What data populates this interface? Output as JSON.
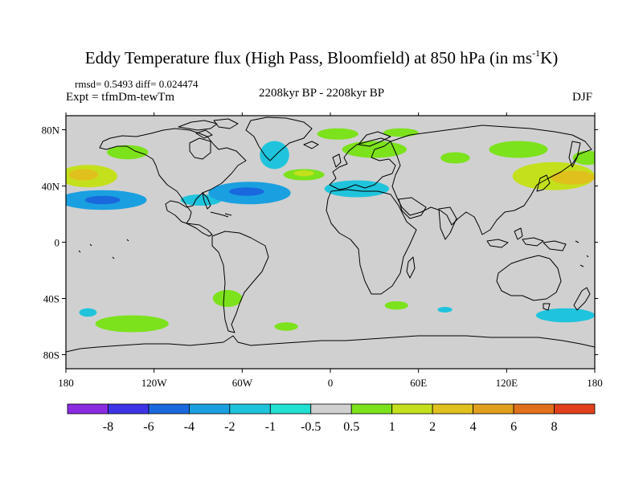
{
  "title": {
    "prefix": "Eddy Temperature flux (High Pass, Bloomfield) at 850 hPa (in ms",
    "sup": "-1",
    "suffix": "K)"
  },
  "stats": "rmsd= 0.5493 diff= 0.024474",
  "experiment": "Expt = tfmDm-tewTm",
  "period": "2208kyr BP - 2208kyr BP",
  "season": "DJF",
  "map": {
    "projection": "cylindrical equidistant",
    "lon_range": [
      -180,
      180
    ],
    "lat_range": [
      -90,
      90
    ],
    "lon_ticks": [
      {
        "value": -180,
        "label": "180"
      },
      {
        "value": -120,
        "label": "120W"
      },
      {
        "value": -60,
        "label": "60W"
      },
      {
        "value": 0,
        "label": "0"
      },
      {
        "value": 60,
        "label": "60E"
      },
      {
        "value": 120,
        "label": "120E"
      },
      {
        "value": 180,
        "label": "180"
      }
    ],
    "lat_ticks": [
      {
        "value": 80,
        "label": "80N"
      },
      {
        "value": 40,
        "label": "40N"
      },
      {
        "value": 0,
        "label": "0"
      },
      {
        "value": -40,
        "label": "40S"
      },
      {
        "value": -80,
        "label": "80S"
      }
    ],
    "background_color": "#d0d0d0",
    "anomalies": [
      {
        "name": "north-pacific-west-positive",
        "lon": -165,
        "lat": 47,
        "rlon": 20,
        "rlat": 8,
        "level": 2
      },
      {
        "name": "north-pacific-west-core",
        "lon": -168,
        "lat": 48,
        "rlon": 10,
        "rlat": 4,
        "level": 4
      },
      {
        "name": "north-pacific-negative",
        "lon": -155,
        "lat": 30,
        "rlon": 30,
        "rlat": 7,
        "level": -2
      },
      {
        "name": "north-pacific-negative-core",
        "lon": -155,
        "lat": 30,
        "rlon": 12,
        "rlat": 3,
        "level": -4
      },
      {
        "name": "alaska-positive",
        "lon": -138,
        "lat": 64,
        "rlon": 14,
        "rlat": 5,
        "level": 1
      },
      {
        "name": "west-atlantic-negative",
        "lon": -55,
        "lat": 35,
        "rlon": 28,
        "rlat": 8,
        "level": -2
      },
      {
        "name": "west-atlantic-negative-core",
        "lon": -57,
        "lat": 36,
        "rlon": 12,
        "rlat": 3,
        "level": -4
      },
      {
        "name": "gulf-negative",
        "lon": -88,
        "lat": 30,
        "rlon": 14,
        "rlat": 4,
        "level": -1
      },
      {
        "name": "greenland-negative",
        "lon": -38,
        "lat": 62,
        "rlon": 10,
        "rlat": 10,
        "level": -1
      },
      {
        "name": "north-atlantic-positive",
        "lon": -18,
        "lat": 48,
        "rlon": 14,
        "rlat": 4,
        "level": 1
      },
      {
        "name": "north-atlantic-core",
        "lon": -18,
        "lat": 49,
        "rlon": 7,
        "rlat": 2,
        "level": 2
      },
      {
        "name": "greenland-sea-positive",
        "lon": 5,
        "lat": 77,
        "rlon": 14,
        "rlat": 4,
        "level": 1
      },
      {
        "name": "barents-positive",
        "lon": 48,
        "lat": 78,
        "rlon": 12,
        "rlat": 3,
        "level": 1
      },
      {
        "name": "north-europe-positive",
        "lon": 30,
        "lat": 66,
        "rlon": 22,
        "rlat": 6,
        "level": 1
      },
      {
        "name": "europe-negative",
        "lon": 18,
        "lat": 38,
        "rlon": 22,
        "rlat": 6,
        "level": -1
      },
      {
        "name": "siberia-positive",
        "lon": 85,
        "lat": 60,
        "rlon": 10,
        "rlat": 4,
        "level": 1
      },
      {
        "name": "east-siberia-positive",
        "lon": 128,
        "lat": 66,
        "rlon": 20,
        "rlat": 6,
        "level": 1
      },
      {
        "name": "west-pacific-positive",
        "lon": 152,
        "lat": 47,
        "rlon": 28,
        "rlat": 10,
        "level": 2
      },
      {
        "name": "west-pacific-core",
        "lon": 165,
        "lat": 46,
        "rlon": 15,
        "rlat": 5,
        "level": 4
      },
      {
        "name": "kamchatka-positive",
        "lon": 175,
        "lat": 60,
        "rlon": 10,
        "rlat": 5,
        "level": 1
      },
      {
        "name": "south-america-positive",
        "lon": -70,
        "lat": -40,
        "rlon": 10,
        "rlat": 6,
        "level": 1
      },
      {
        "name": "south-pacific-positive",
        "lon": -135,
        "lat": -58,
        "rlon": 25,
        "rlat": 6,
        "level": 1
      },
      {
        "name": "south-pacific-negative",
        "lon": -165,
        "lat": -50,
        "rlon": 6,
        "rlat": 3,
        "level": -1
      },
      {
        "name": "south-atlantic-positive",
        "lon": -30,
        "lat": -60,
        "rlon": 8,
        "rlat": 3,
        "level": 1
      },
      {
        "name": "south-indian-positive",
        "lon": 45,
        "lat": -45,
        "rlon": 8,
        "rlat": 3,
        "level": 1
      },
      {
        "name": "south-indian-negative",
        "lon": 78,
        "lat": -48,
        "rlon": 5,
        "rlat": 2,
        "level": -1
      },
      {
        "name": "southwest-pacific-negative",
        "lon": 160,
        "lat": -52,
        "rlon": 20,
        "rlat": 5,
        "level": -1
      }
    ]
  },
  "colorbar": {
    "labels": [
      "-8",
      "-6",
      "-4",
      "-2",
      "-1",
      "-0.5",
      "0.5",
      "1",
      "2",
      "4",
      "6",
      "8"
    ],
    "colors": [
      "#8a2be2",
      "#3d34e6",
      "#1a68dd",
      "#1aa0e0",
      "#1fc4dc",
      "#22e0d2",
      "#d0d0d0",
      "#7ce21c",
      "#c4e01c",
      "#e0c01c",
      "#e0a01c",
      "#e0701c",
      "#e0401c"
    ]
  }
}
